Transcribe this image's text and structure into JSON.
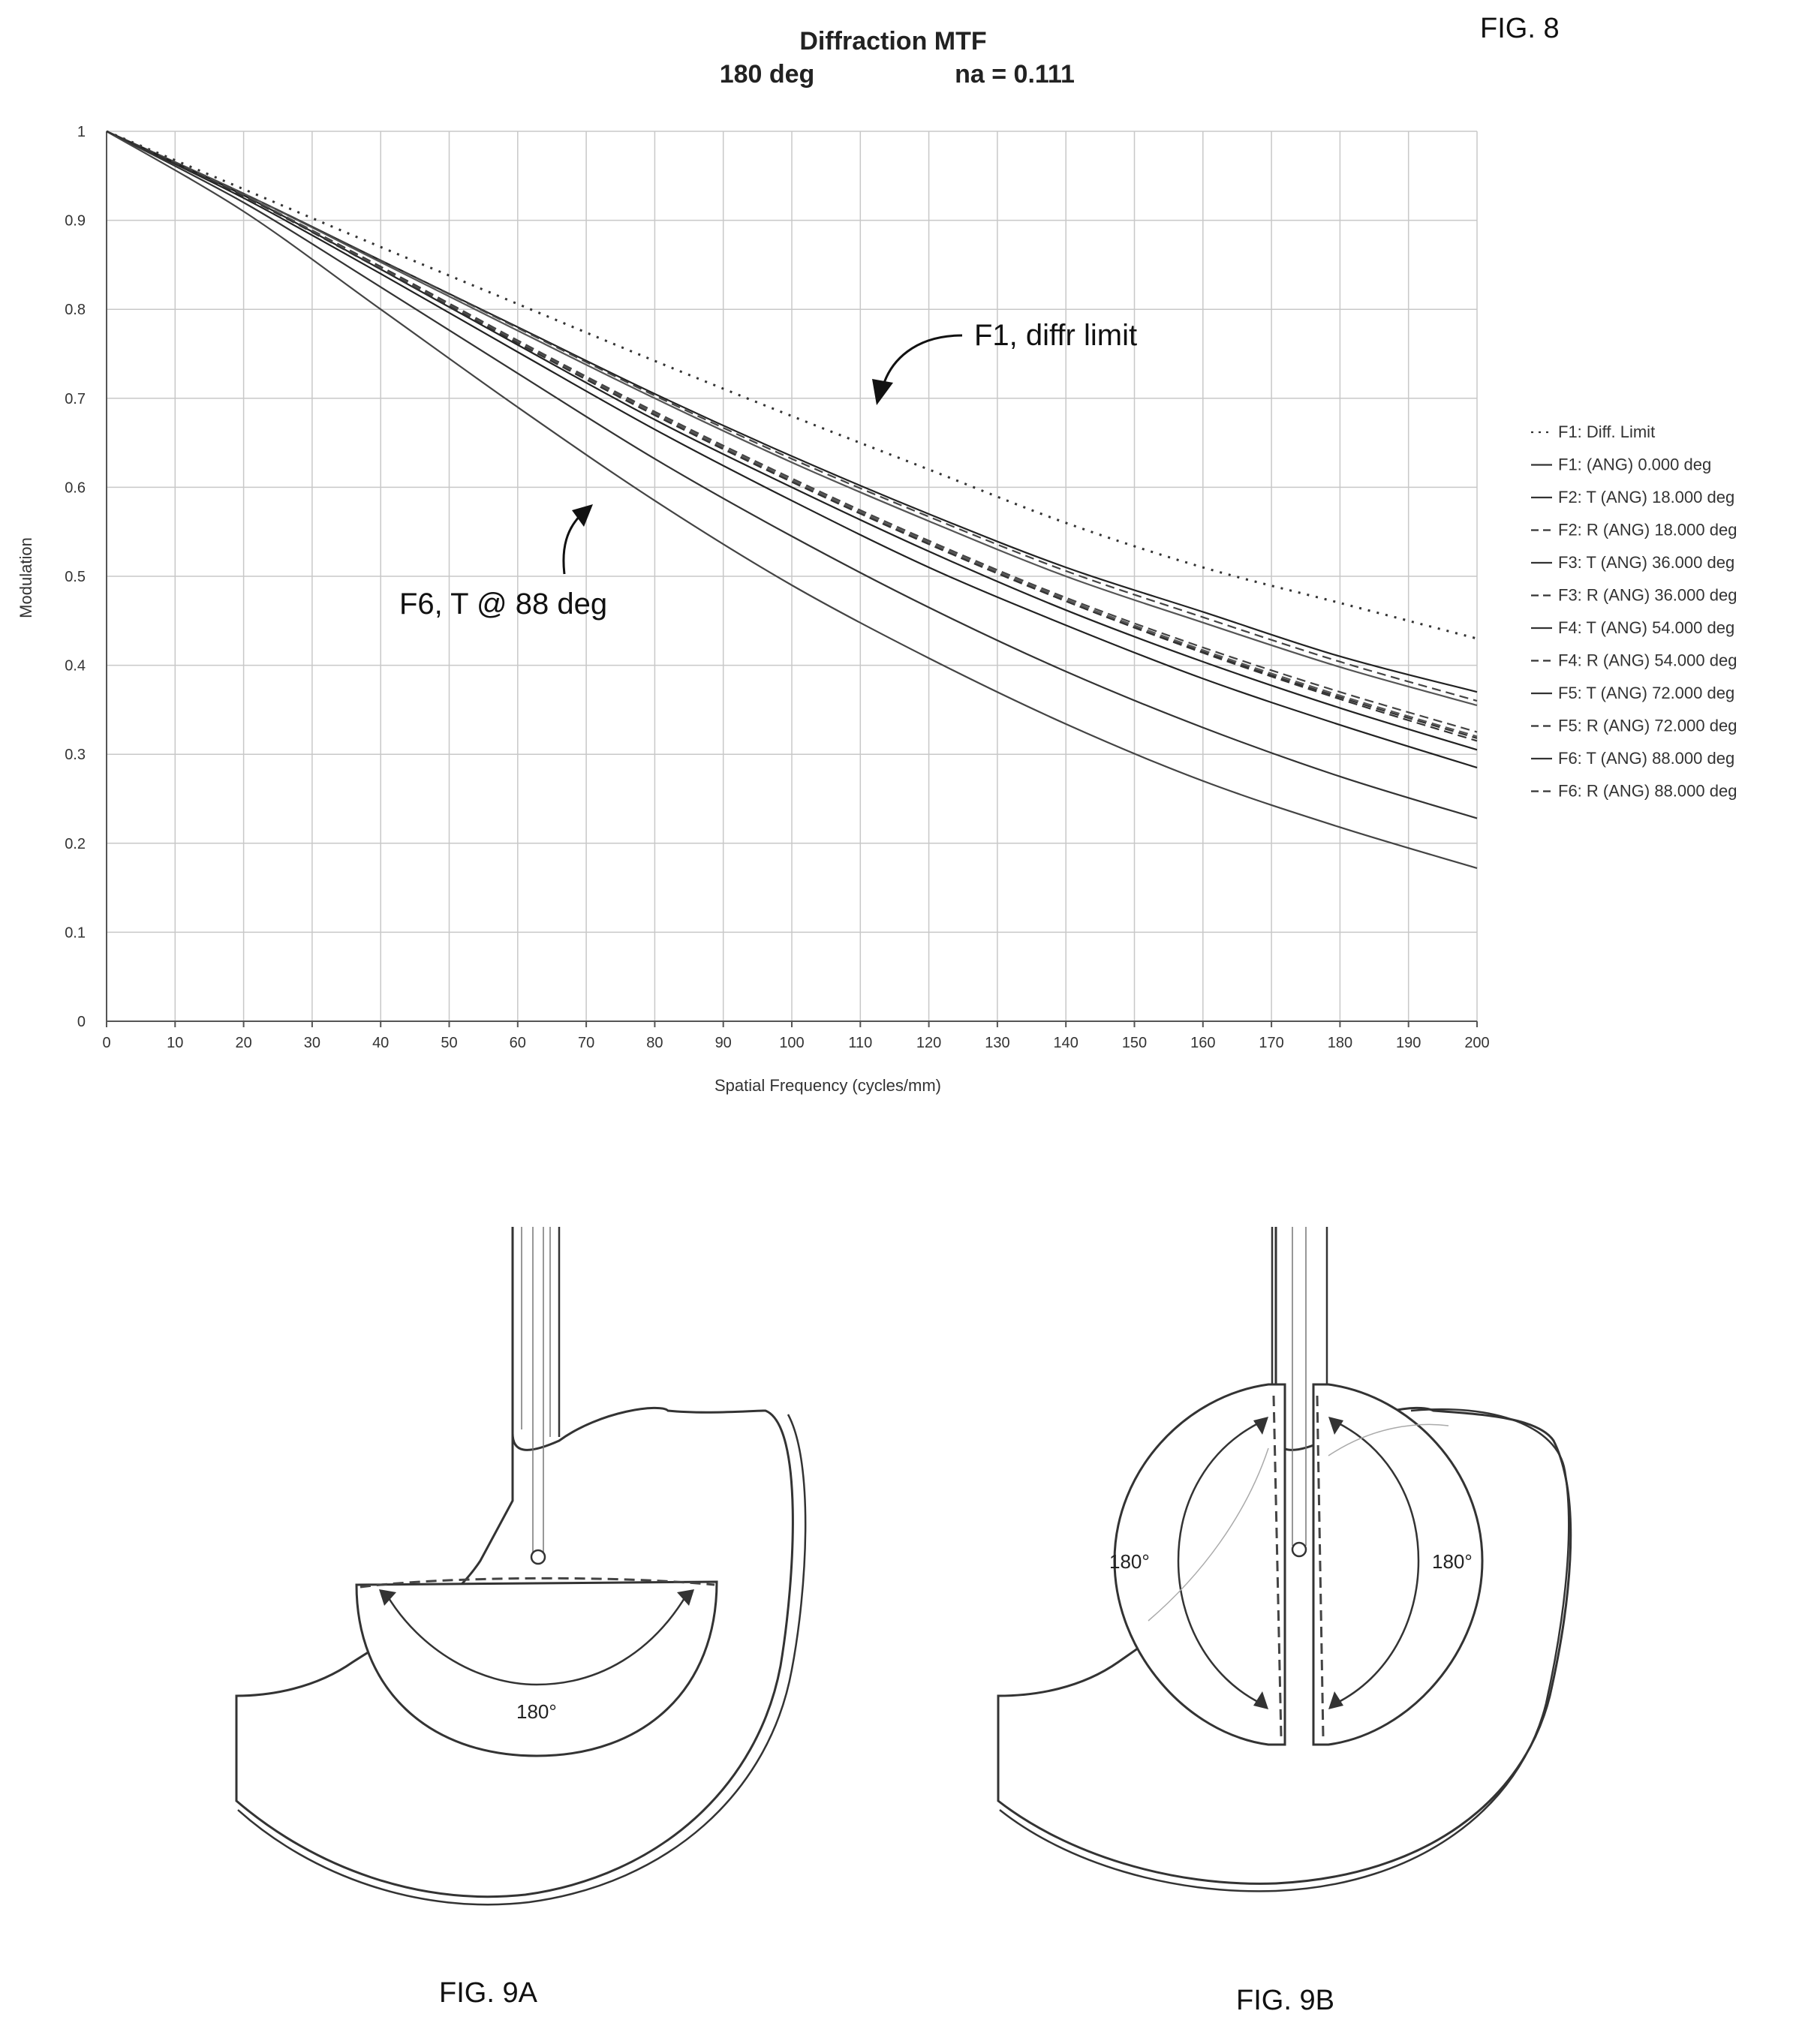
{
  "figures": {
    "fig8_label": "FIG. 8",
    "fig9a_label": "FIG. 9A",
    "fig9b_label": "FIG. 9B"
  },
  "chart": {
    "title": "Diffraction MTF",
    "subtitle_left": "180 deg",
    "subtitle_right": "na = 0.111",
    "annotation_top": "F1, diffr limit",
    "annotation_bottom": "F6, T @ 88 deg"
  },
  "diagrams": {
    "fig9a_angle": "180°",
    "fig9b_angle_left": "180°",
    "fig9b_angle_right": "180°"
  },
  "chart_data": {
    "type": "line",
    "title": "Diffraction MTF",
    "xlabel": "Spatial Frequency (cycles/mm)",
    "ylabel": "Modulation",
    "xlim": [
      0,
      200
    ],
    "ylim": [
      0,
      1
    ],
    "xticks": [
      0,
      10,
      20,
      30,
      40,
      50,
      60,
      70,
      80,
      90,
      100,
      110,
      120,
      130,
      140,
      150,
      160,
      170,
      180,
      190,
      200
    ],
    "yticks": [
      0,
      0.1,
      0.2,
      0.3,
      0.4,
      0.5,
      0.6,
      0.7,
      0.8,
      0.9,
      1
    ],
    "grid": true,
    "legend_position": "right",
    "x": [
      0,
      20,
      40,
      60,
      80,
      100,
      120,
      140,
      160,
      180,
      200
    ],
    "series": [
      {
        "name": "F1: Diff. Limit",
        "style": "dotted",
        "values": [
          1,
          0.935,
          0.87,
          0.806,
          0.742,
          0.68,
          0.62,
          0.56,
          0.51,
          0.47,
          0.43
        ]
      },
      {
        "name": "F1: (ANG) 0.000 deg",
        "style": "solid",
        "values": [
          1,
          0.93,
          0.855,
          0.78,
          0.705,
          0.635,
          0.57,
          0.51,
          0.46,
          0.41,
          0.37
        ]
      },
      {
        "name": "F2: T (ANG) 18.000 deg",
        "style": "solid",
        "values": [
          1,
          0.93,
          0.853,
          0.776,
          0.7,
          0.628,
          0.562,
          0.5,
          0.448,
          0.398,
          0.355
        ]
      },
      {
        "name": "F2: R (ANG) 18.000 deg",
        "style": "dashed",
        "values": [
          1,
          0.93,
          0.855,
          0.779,
          0.703,
          0.632,
          0.567,
          0.506,
          0.454,
          0.404,
          0.36
        ]
      },
      {
        "name": "F3: T (ANG) 36.000 deg",
        "style": "solid",
        "values": [
          1,
          0.928,
          0.845,
          0.76,
          0.676,
          0.6,
          0.528,
          0.462,
          0.404,
          0.352,
          0.305
        ]
      },
      {
        "name": "F3: R (ANG) 36.000 deg",
        "style": "dashed",
        "values": [
          1,
          0.928,
          0.848,
          0.765,
          0.683,
          0.607,
          0.537,
          0.472,
          0.414,
          0.362,
          0.315
        ]
      },
      {
        "name": "F4: T (ANG) 54.000 deg",
        "style": "solid",
        "values": [
          1,
          0.925,
          0.84,
          0.752,
          0.665,
          0.585,
          0.51,
          0.445,
          0.385,
          0.333,
          0.285
        ]
      },
      {
        "name": "F4: R (ANG) 54.000 deg",
        "style": "dashed",
        "values": [
          1,
          0.928,
          0.847,
          0.765,
          0.685,
          0.61,
          0.54,
          0.476,
          0.42,
          0.37,
          0.325
        ]
      },
      {
        "name": "F5: T (ANG) 72.000 deg",
        "style": "solid",
        "values": [
          1,
          0.92,
          0.825,
          0.728,
          0.632,
          0.545,
          0.465,
          0.393,
          0.33,
          0.275,
          0.228
        ]
      },
      {
        "name": "F5: R (ANG) 72.000 deg",
        "style": "dashed",
        "values": [
          1,
          0.928,
          0.846,
          0.763,
          0.683,
          0.608,
          0.538,
          0.474,
          0.417,
          0.366,
          0.32
        ]
      },
      {
        "name": "F6: T (ANG) 88.000 deg",
        "style": "solid",
        "values": [
          1,
          0.91,
          0.8,
          0.69,
          0.585,
          0.49,
          0.408,
          0.334,
          0.27,
          0.218,
          0.172
        ]
      },
      {
        "name": "F6: R (ANG) 88.000 deg",
        "style": "dashed",
        "values": [
          1,
          0.927,
          0.845,
          0.762,
          0.681,
          0.606,
          0.536,
          0.472,
          0.415,
          0.364,
          0.318
        ]
      }
    ]
  }
}
